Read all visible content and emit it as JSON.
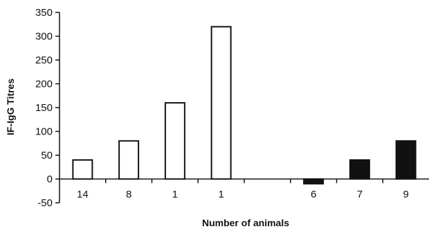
{
  "chart_data": {
    "type": "bar",
    "xlabel": "Number of animals",
    "ylabel": "IF-IgG Titres",
    "ylim": [
      -50,
      350
    ],
    "yticks": [
      -50,
      0,
      50,
      100,
      150,
      200,
      250,
      300,
      350
    ],
    "grid": false,
    "categories": [
      "14",
      "8",
      "1",
      "1",
      "",
      "6",
      "7",
      "9"
    ],
    "values": [
      40,
      80,
      160,
      320,
      null,
      -10,
      40,
      80
    ],
    "bar_fill": [
      "white",
      "white",
      "white",
      "white",
      null,
      "black",
      "black",
      "black"
    ],
    "colors": {
      "open_bar": "#ffffff",
      "solid_bar": "#111111",
      "outline": "#111111"
    }
  }
}
